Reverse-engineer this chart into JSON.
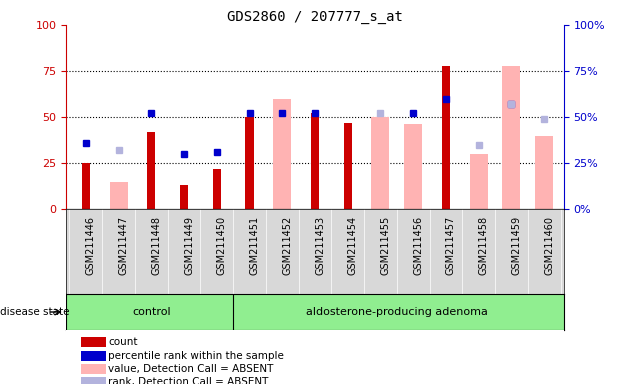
{
  "title": "GDS2860 / 207777_s_at",
  "samples": [
    "GSM211446",
    "GSM211447",
    "GSM211448",
    "GSM211449",
    "GSM211450",
    "GSM211451",
    "GSM211452",
    "GSM211453",
    "GSM211454",
    "GSM211455",
    "GSM211456",
    "GSM211457",
    "GSM211458",
    "GSM211459",
    "GSM211460"
  ],
  "count": [
    25,
    0,
    42,
    13,
    22,
    50,
    0,
    52,
    47,
    0,
    0,
    78,
    0,
    0,
    0
  ],
  "percentile_rank": [
    36,
    null,
    52,
    30,
    31,
    52,
    52,
    52,
    null,
    null,
    52,
    60,
    null,
    57,
    null
  ],
  "value_absent": [
    null,
    15,
    null,
    null,
    null,
    null,
    60,
    null,
    null,
    50,
    46,
    null,
    30,
    78,
    40
  ],
  "rank_absent": [
    null,
    32,
    null,
    null,
    null,
    null,
    null,
    null,
    null,
    52,
    null,
    null,
    35,
    57,
    49
  ],
  "groups": [
    {
      "label": "control",
      "start": 0,
      "end": 5
    },
    {
      "label": "aldosterone-producing adenoma",
      "start": 5,
      "end": 15
    }
  ],
  "disease_state_label": "disease state",
  "ylim": [
    0,
    100
  ],
  "yticks": [
    0,
    25,
    50,
    75,
    100
  ],
  "bar_color_count": "#cc0000",
  "bar_color_absent": "#ffb3b3",
  "dot_color_rank": "#0000cc",
  "dot_color_rank_absent": "#b3b3dd",
  "left_axis_color": "#cc0000",
  "right_axis_color": "#0000cc",
  "grid_color": "black",
  "bg_color": "#d8d8d8",
  "group_bg": "#90ee90",
  "legend_items": [
    {
      "label": "count",
      "color": "#cc0000"
    },
    {
      "label": "percentile rank within the sample",
      "color": "#0000cc"
    },
    {
      "label": "value, Detection Call = ABSENT",
      "color": "#ffb3b3"
    },
    {
      "label": "rank, Detection Call = ABSENT",
      "color": "#b3b3dd"
    }
  ]
}
